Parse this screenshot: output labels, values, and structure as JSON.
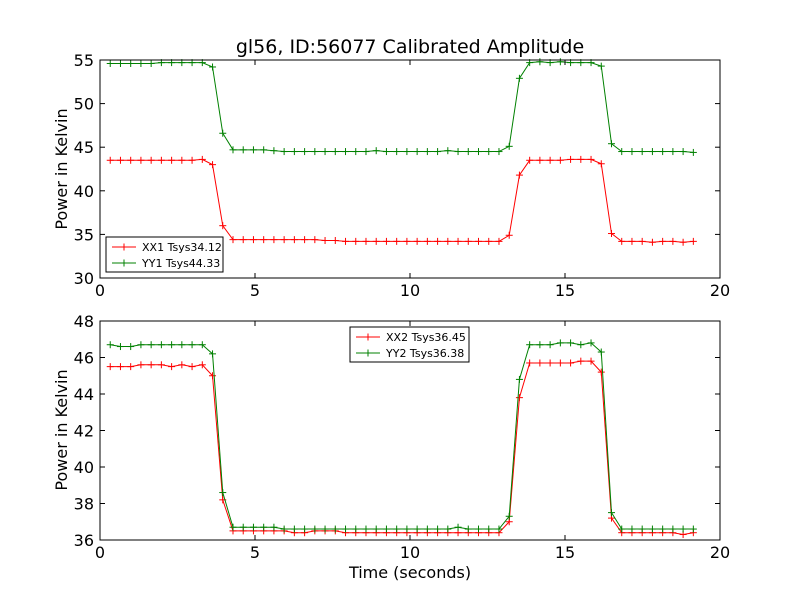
{
  "chart_data": [
    {
      "type": "line",
      "title": "gl56, ID:56077 Calibrated Amplitude",
      "xlabel": "",
      "ylabel": "Power in Kelvin",
      "xlim": [
        0,
        20
      ],
      "ylim": [
        30,
        55
      ],
      "xticks": [
        "0",
        "5",
        "10",
        "15",
        "20"
      ],
      "yticks": [
        "30",
        "35",
        "40",
        "45",
        "50",
        "55"
      ],
      "legend_position": "lower-left",
      "x": [
        0.33,
        0.66,
        0.99,
        1.32,
        1.65,
        1.98,
        2.31,
        2.64,
        2.97,
        3.3,
        3.63,
        3.96,
        4.29,
        4.62,
        4.95,
        5.28,
        5.61,
        5.94,
        6.27,
        6.6,
        6.93,
        7.26,
        7.59,
        7.92,
        8.25,
        8.58,
        8.91,
        9.24,
        9.57,
        9.9,
        10.23,
        10.56,
        10.89,
        11.22,
        11.55,
        11.88,
        12.21,
        12.54,
        12.87,
        13.2,
        13.53,
        13.86,
        14.19,
        14.52,
        14.85,
        15.18,
        15.51,
        15.84,
        16.17,
        16.5,
        16.83,
        17.16,
        17.49,
        17.82,
        18.15,
        18.48,
        18.81,
        19.14
      ],
      "series": [
        {
          "name": "XX1 Tsys34.12",
          "color": "#ff0000",
          "values": [
            43.5,
            43.5,
            43.5,
            43.5,
            43.5,
            43.5,
            43.5,
            43.5,
            43.5,
            43.6,
            43.0,
            36.0,
            34.4,
            34.4,
            34.4,
            34.4,
            34.4,
            34.4,
            34.4,
            34.4,
            34.4,
            34.3,
            34.3,
            34.2,
            34.2,
            34.2,
            34.2,
            34.2,
            34.2,
            34.2,
            34.2,
            34.2,
            34.2,
            34.2,
            34.2,
            34.2,
            34.2,
            34.2,
            34.2,
            34.9,
            41.8,
            43.5,
            43.5,
            43.5,
            43.5,
            43.6,
            43.6,
            43.6,
            43.1,
            35.1,
            34.2,
            34.2,
            34.2,
            34.1,
            34.2,
            34.2,
            34.1,
            34.2
          ]
        },
        {
          "name": "YY1 Tsys44.33",
          "color": "#008000",
          "values": [
            54.6,
            54.6,
            54.6,
            54.6,
            54.6,
            54.7,
            54.7,
            54.7,
            54.7,
            54.7,
            54.2,
            46.6,
            44.7,
            44.7,
            44.7,
            44.7,
            44.6,
            44.5,
            44.5,
            44.5,
            44.5,
            44.5,
            44.5,
            44.5,
            44.5,
            44.5,
            44.6,
            44.5,
            44.5,
            44.5,
            44.5,
            44.5,
            44.5,
            44.6,
            44.5,
            44.5,
            44.5,
            44.5,
            44.5,
            45.1,
            52.9,
            54.7,
            54.8,
            54.7,
            54.8,
            54.7,
            54.7,
            54.7,
            54.3,
            45.4,
            44.5,
            44.5,
            44.5,
            44.5,
            44.5,
            44.5,
            44.5,
            44.4
          ]
        }
      ]
    },
    {
      "type": "line",
      "title": "",
      "xlabel": "Time (seconds)",
      "ylabel": "Power in Kelvin",
      "xlim": [
        0,
        20
      ],
      "ylim": [
        36,
        48
      ],
      "xticks": [
        "0",
        "5",
        "10",
        "15",
        "20"
      ],
      "yticks": [
        "36",
        "38",
        "40",
        "42",
        "44",
        "46",
        "48"
      ],
      "legend_position": "upper-center",
      "x": [
        0.33,
        0.66,
        0.99,
        1.32,
        1.65,
        1.98,
        2.31,
        2.64,
        2.97,
        3.3,
        3.63,
        3.96,
        4.29,
        4.62,
        4.95,
        5.28,
        5.61,
        5.94,
        6.27,
        6.6,
        6.93,
        7.26,
        7.59,
        7.92,
        8.25,
        8.58,
        8.91,
        9.24,
        9.57,
        9.9,
        10.23,
        10.56,
        10.89,
        11.22,
        11.55,
        11.88,
        12.21,
        12.54,
        12.87,
        13.2,
        13.53,
        13.86,
        14.19,
        14.52,
        14.85,
        15.18,
        15.51,
        15.84,
        16.17,
        16.5,
        16.83,
        17.16,
        17.49,
        17.82,
        18.15,
        18.48,
        18.81,
        19.14
      ],
      "series": [
        {
          "name": "XX2 Tsys36.45",
          "color": "#ff0000",
          "values": [
            45.5,
            45.5,
            45.5,
            45.6,
            45.6,
            45.6,
            45.5,
            45.6,
            45.5,
            45.6,
            45.0,
            38.2,
            36.5,
            36.5,
            36.5,
            36.5,
            36.5,
            36.5,
            36.4,
            36.4,
            36.5,
            36.5,
            36.5,
            36.4,
            36.4,
            36.4,
            36.4,
            36.4,
            36.4,
            36.4,
            36.4,
            36.4,
            36.4,
            36.4,
            36.4,
            36.4,
            36.4,
            36.4,
            36.4,
            37.0,
            43.8,
            45.7,
            45.7,
            45.7,
            45.7,
            45.7,
            45.8,
            45.8,
            45.2,
            37.2,
            36.4,
            36.4,
            36.4,
            36.4,
            36.4,
            36.4,
            36.3,
            36.4
          ]
        },
        {
          "name": "YY2 Tsys36.38",
          "color": "#008000",
          "values": [
            46.7,
            46.6,
            46.6,
            46.7,
            46.7,
            46.7,
            46.7,
            46.7,
            46.7,
            46.7,
            46.2,
            38.6,
            36.7,
            36.7,
            36.7,
            36.7,
            36.7,
            36.6,
            36.6,
            36.6,
            36.6,
            36.6,
            36.6,
            36.6,
            36.6,
            36.6,
            36.6,
            36.6,
            36.6,
            36.6,
            36.6,
            36.6,
            36.6,
            36.6,
            36.7,
            36.6,
            36.6,
            36.6,
            36.6,
            37.3,
            44.8,
            46.7,
            46.7,
            46.7,
            46.8,
            46.8,
            46.7,
            46.8,
            46.3,
            37.5,
            36.6,
            36.6,
            36.6,
            36.6,
            36.6,
            36.6,
            36.6,
            36.6
          ]
        }
      ]
    }
  ]
}
